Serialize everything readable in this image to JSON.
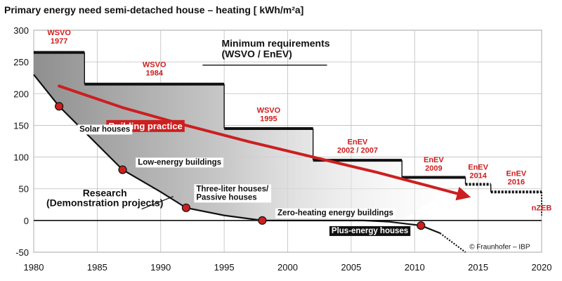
{
  "colors": {
    "red": "#cc1f1f",
    "black": "#111111",
    "grid": "#bdbdbd",
    "label_bg": "#ffffff",
    "dark_label_bg": "#111111"
  },
  "chart_data": {
    "type": "line",
    "title": "Primary energy need semi-detached house – heating [ kWh/m²a]",
    "xlim": [
      1980,
      2020
    ],
    "ylim": [
      -50,
      300
    ],
    "xticks": [
      1980,
      1985,
      1990,
      1995,
      2000,
      2005,
      2010,
      2015,
      2020
    ],
    "yticks": [
      -50,
      0,
      50,
      100,
      150,
      200,
      250,
      300
    ],
    "grid": true,
    "legend": "none",
    "requirements_label": [
      "Minimum requirements",
      "(WSVO / EnEV)"
    ],
    "requirements_steps": [
      {
        "label": [
          "WSVO",
          "1977"
        ],
        "x0": 1980,
        "x1": 1984,
        "y": 265
      },
      {
        "label": [
          "WSVO",
          "1984"
        ],
        "x0": 1984,
        "x1": 1995,
        "y": 215
      },
      {
        "label": [
          "WSVO",
          "1995"
        ],
        "x0": 1995,
        "x1": 2002,
        "y": 145
      },
      {
        "label": [
          "EnEV",
          "2002 / 2007"
        ],
        "x0": 2002,
        "x1": 2009,
        "y": 95
      },
      {
        "label": [
          "EnEV",
          "2009"
        ],
        "x0": 2009,
        "x1": 2014,
        "y": 68
      },
      {
        "label": [
          "EnEV",
          "2014"
        ],
        "x0": 2014,
        "x1": 2016,
        "y": 57
      },
      {
        "label": [
          "EnEV",
          "2016"
        ],
        "x0": 2016,
        "x1": 2020,
        "y": 45
      },
      {
        "label": [
          "nZEB"
        ],
        "x0": 2020,
        "x1": 2020,
        "y": 0
      }
    ],
    "building_practice": {
      "label": "Building practice",
      "points": [
        [
          1982,
          212
        ],
        [
          1987,
          178
        ],
        [
          1992,
          150
        ],
        [
          1997,
          124
        ],
        [
          2002,
          100
        ],
        [
          2007,
          76
        ],
        [
          2011,
          55
        ],
        [
          2014,
          39
        ]
      ]
    },
    "research": {
      "label": [
        "Research",
        "(Demonstration projects)"
      ],
      "curve": [
        [
          1980,
          230
        ],
        [
          1982,
          180
        ],
        [
          1984,
          140
        ],
        [
          1987,
          80
        ],
        [
          1990,
          45
        ],
        [
          1992,
          20
        ],
        [
          1995,
          8
        ],
        [
          1998,
          0
        ],
        [
          2002,
          0
        ],
        [
          2006,
          0
        ],
        [
          2008,
          -2
        ],
        [
          2010.5,
          -8
        ],
        [
          2012,
          -20
        ],
        [
          2013,
          -35
        ],
        [
          2014,
          -50
        ]
      ],
      "milestones": [
        {
          "label": "Solar houses",
          "x": 1982,
          "y": 180
        },
        {
          "label": "Low-energy buildings",
          "x": 1987,
          "y": 80
        },
        {
          "label": [
            "Three-liter houses/",
            "Passive houses"
          ],
          "x": 1992,
          "y": 20
        },
        {
          "label": "Zero-heating energy buildings",
          "x": 1998,
          "y": 0
        },
        {
          "label": "Plus-energy houses",
          "x": 2010.5,
          "y": -8
        }
      ]
    },
    "credit": "© Fraunhofer – IBP"
  }
}
